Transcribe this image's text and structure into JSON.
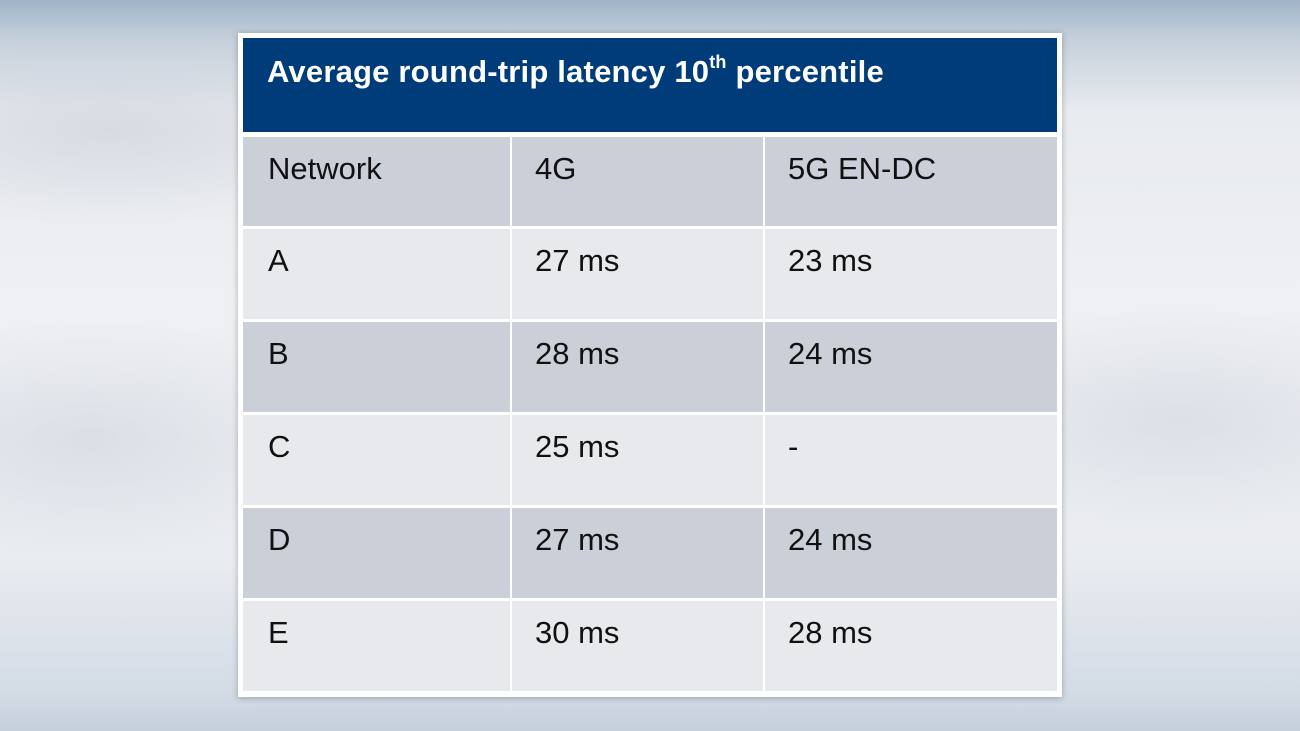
{
  "chart_data": {
    "type": "table",
    "title": {
      "main": "Average round-trip latency 10",
      "superscript": "th",
      "rest": " percentile"
    },
    "columns": [
      "Network",
      "4G",
      "5G EN-DC"
    ],
    "rows": [
      [
        "A",
        "27 ms",
        "23 ms"
      ],
      [
        "B",
        "28 ms",
        "24 ms"
      ],
      [
        "C",
        "25 ms",
        "-"
      ],
      [
        "D",
        "27 ms",
        "24 ms"
      ],
      [
        "E",
        "30 ms",
        "28 ms"
      ]
    ]
  },
  "colors": {
    "header_bar": "#003c7a",
    "header_text": "#ffffff",
    "row_dark": "#cbcfd8",
    "row_light": "#e8e9ed",
    "cell_text": "#111111"
  }
}
